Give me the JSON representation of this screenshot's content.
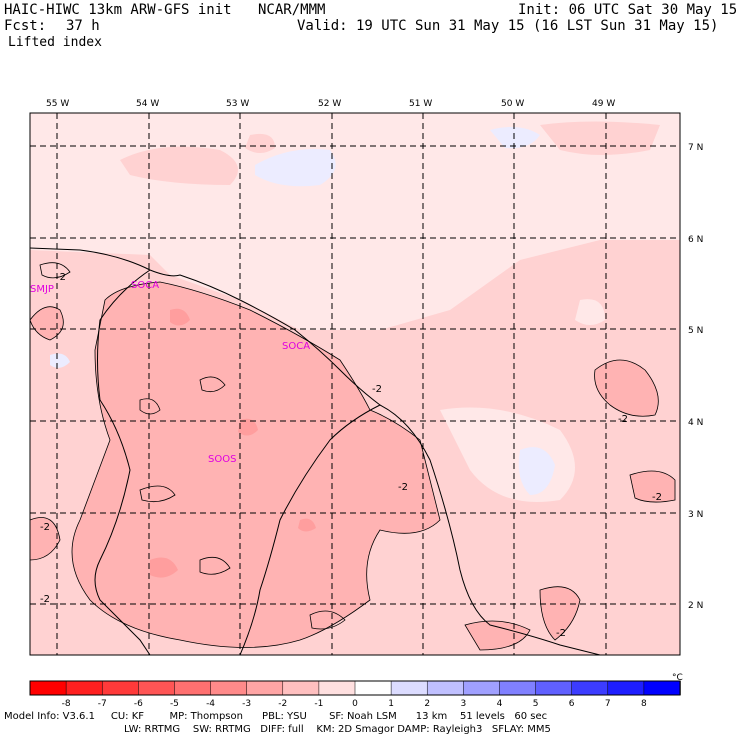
{
  "header": {
    "model": "HAIC-HIWC 13km ARW-GFS init",
    "center": "NCAR/MMM",
    "init": "Init: 06 UTC Sat 30 May 15",
    "fcst_label": "Fcst:",
    "fcst_value": "37 h",
    "valid": "Valid: 19 UTC Sun 31 May 15 (16 LST Sun 31 May 15)",
    "field": "Lifted index"
  },
  "map": {
    "lon_labels": [
      "55 W",
      "54 W",
      "53 W",
      "52 W",
      "51 W",
      "50 W",
      "49 W"
    ],
    "lat_labels": [
      "7 N",
      "6 N",
      "5 N",
      "4 N",
      "3 N",
      "2 N"
    ],
    "stations": [
      "SMJP",
      "SOCA",
      "SOCA",
      "SOOS"
    ],
    "contour_label": "-2",
    "colors": {
      "bg": "#ffe8e8",
      "light": "#ffd0d0",
      "mid": "#ffb3b3",
      "strong": "#ff9e9e",
      "cool": "#ececff"
    }
  },
  "colorbar": {
    "ticks": [
      "-8",
      "-7",
      "-6",
      "-5",
      "-4",
      "-3",
      "-2",
      "-1",
      "0",
      "1",
      "2",
      "3",
      "4",
      "5",
      "6",
      "7",
      "8"
    ],
    "unit": "°C",
    "colors": [
      "#ff0000",
      "#ff2020",
      "#ff3a3a",
      "#ff5555",
      "#ff7070",
      "#ff8a8a",
      "#ffa5a5",
      "#ffc0c0",
      "#ffe0e0",
      "#ffffff",
      "#dcdcff",
      "#c0c0ff",
      "#a0a0ff",
      "#8080ff",
      "#6060ff",
      "#3c3cff",
      "#1e1eff",
      "#0000ff"
    ]
  },
  "footer": {
    "line1": "Model Info: V3.6.1     CU: KF        MP: Thompson      PBL: YSU       SF: Noah LSM      13 km    51 levels   60 sec",
    "line2": "LW: RRTMG    SW: RRTMG   DIFF: full    KM: 2D Smagor DAMP: Rayleigh3   SFLAY: MM5"
  }
}
